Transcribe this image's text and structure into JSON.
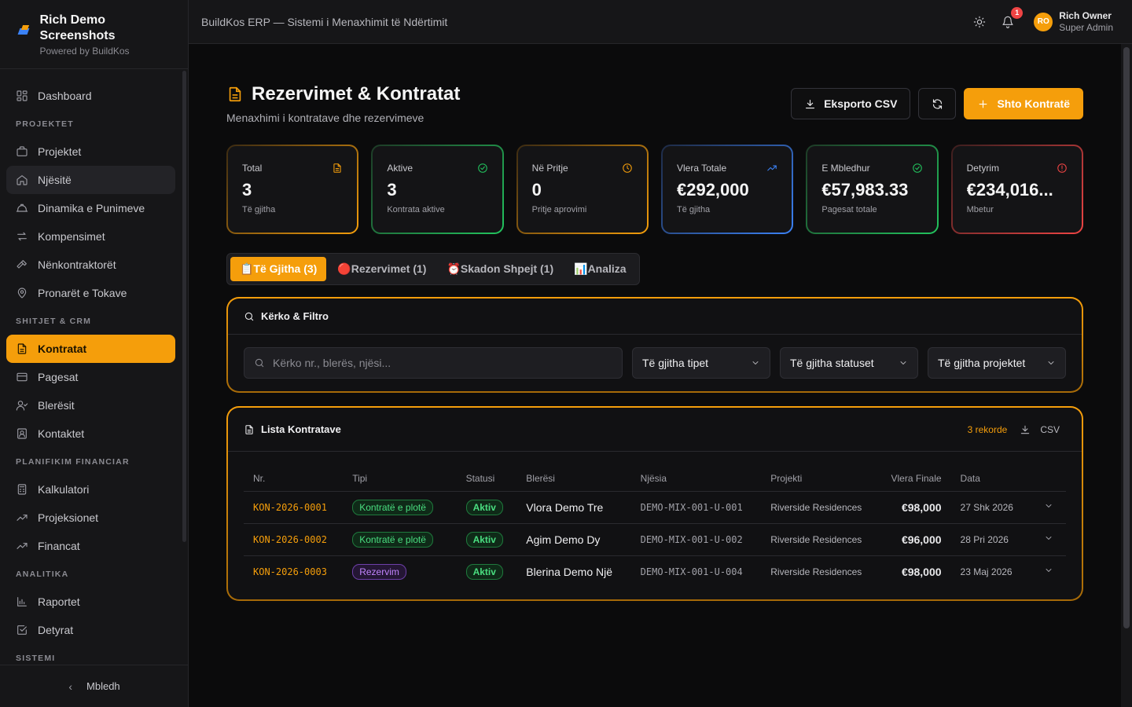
{
  "brand": {
    "title": "Rich Demo Screenshots",
    "subtitle": "Powered by BuildKos"
  },
  "topbar": {
    "title": "BuildKos ERP — Sistemi i Menaxhimit të Ndërtimit",
    "notifications": "1"
  },
  "user": {
    "initials": "RO",
    "name": "Rich Owner",
    "role": "Super Admin"
  },
  "sidebar": {
    "dashboard": "Dashboard",
    "sections": {
      "projektet": "PROJEKTET",
      "shitjet": "SHITJET & CRM",
      "planifikim": "PLANIFIKIM FINANCIAR",
      "analitika": "ANALITIKA",
      "sistemi": "SISTEMI"
    },
    "items": {
      "projektet": "Projektet",
      "njesite": "Njësitë",
      "dinamika": "Dinamika e Punimeve",
      "kompensimet": "Kompensimet",
      "nenkontraktoret": "Nënkontraktorët",
      "pronaret": "Pronarët e Tokave",
      "kontratat": "Kontratat",
      "pagesat": "Pagesat",
      "bleresit": "Blerësit",
      "kontaktet": "Kontaktet",
      "kalkulatori": "Kalkulatori",
      "projeksionet": "Projeksionet",
      "financat": "Financat",
      "raportet": "Raportet",
      "detyrat": "Detyrat"
    },
    "collapse": "Mbledh"
  },
  "page": {
    "title": "Rezervimet & Kontratat",
    "subtitle": "Menaxhimi i kontratave dhe rezervimeve",
    "export_label": "Eksporto CSV",
    "add_label": "Shto Kontratë"
  },
  "stats": [
    {
      "label": "Total",
      "value": "3",
      "sub": "Të gjitha",
      "icon": "document-icon",
      "color": "#f59e0b"
    },
    {
      "label": "Aktive",
      "value": "3",
      "sub": "Kontrata aktive",
      "icon": "check-circle-icon",
      "color": "#22c55e"
    },
    {
      "label": "Në Pritje",
      "value": "0",
      "sub": "Pritje aprovimi",
      "icon": "clock-icon",
      "color": "#f59e0b"
    },
    {
      "label": "Vlera Totale",
      "value": "€292,000",
      "sub": "Të gjitha",
      "icon": "trending-up-icon",
      "color": "#3b82f6"
    },
    {
      "label": "E Mbledhur",
      "value": "€57,983.33",
      "sub": "Pagesat totale",
      "icon": "check-circle-icon",
      "color": "#22c55e"
    },
    {
      "label": "Detyrim",
      "value": "€234,016...",
      "sub": "Mbetur",
      "icon": "alert-circle-icon",
      "color": "#ef4444"
    }
  ],
  "tabs": [
    {
      "label": "📋Të Gjitha (3)"
    },
    {
      "label": "🔴Rezervimet (1)"
    },
    {
      "label": "⏰Skadon Shpejt (1)"
    },
    {
      "label": "📊Analiza"
    }
  ],
  "filters": {
    "title": "Kërko & Filtro",
    "search_placeholder": "Kërko nr., blerës, njësi...",
    "type": "Të gjitha tipet",
    "status": "Të gjitha statuset",
    "project": "Të gjitha projektet"
  },
  "list": {
    "title": "Lista Kontratave",
    "count": "3 rekorde",
    "csv": "CSV",
    "columns": [
      "Nr.",
      "Tipi",
      "Statusi",
      "Blerësi",
      "Njësia",
      "Projekti",
      "Vlera Finale",
      "Data"
    ],
    "rows": [
      {
        "nr": "KON-2026-0001",
        "tipi": "Kontratë e plotë",
        "statusi": "Aktiv",
        "bleresi": "Vlora Demo Tre",
        "njesia": "DEMO-MIX-001-U-001",
        "projekti": "Riverside Residences",
        "vlera": "€98,000",
        "data": "27 Shk 2026"
      },
      {
        "nr": "KON-2026-0002",
        "tipi": "Kontratë e plotë",
        "statusi": "Aktiv",
        "bleresi": "Agim Demo Dy",
        "njesia": "DEMO-MIX-001-U-002",
        "projekti": "Riverside Residences",
        "vlera": "€96,000",
        "data": "28 Pri 2026"
      },
      {
        "nr": "KON-2026-0003",
        "tipi": "Rezervim",
        "statusi": "Aktiv",
        "bleresi": "Blerina Demo Një",
        "njesia": "DEMO-MIX-001-U-004",
        "projekti": "Riverside Residences",
        "vlera": "€98,000",
        "data": "23 Maj 2026"
      }
    ]
  }
}
